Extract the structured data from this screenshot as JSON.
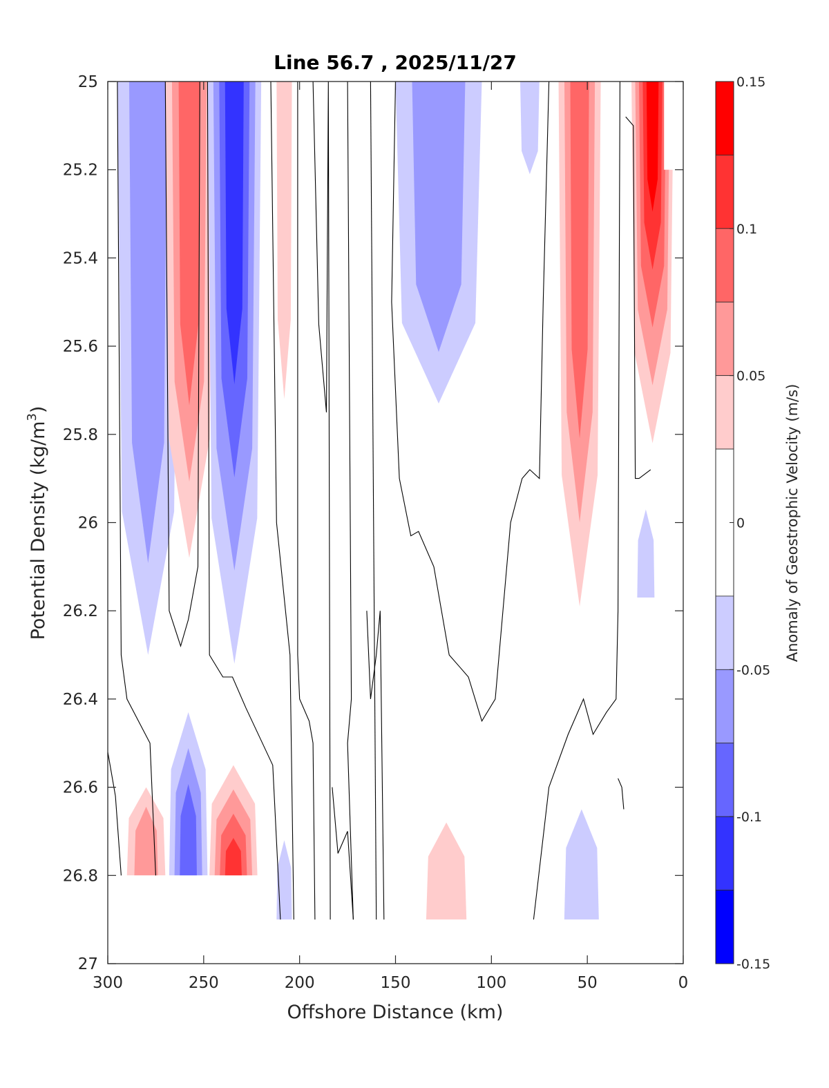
{
  "chart_data": {
    "type": "contour",
    "title": "Line 56.7 , 2025/11/27",
    "xlabel": "Offshore Distance (km)",
    "ylabel": "Potential Density (kg/m",
    "ylabel_superscript": "3",
    "ylabel_suffix": ")",
    "xlim": [
      300,
      0
    ],
    "ylim": [
      25,
      27
    ],
    "x_reversed": true,
    "y_reversed": true,
    "xticks": [
      300,
      250,
      200,
      150,
      100,
      50,
      0
    ],
    "xtick_labels": [
      "300",
      "250",
      "200",
      "150",
      "100",
      "50",
      "0"
    ],
    "yticks": [
      25,
      25.2,
      25.4,
      25.6,
      25.8,
      26,
      26.2,
      26.4,
      26.6,
      26.8,
      27
    ],
    "ytick_labels": [
      "25",
      "25.2",
      "25.4",
      "25.6",
      "25.8",
      "26",
      "26.2",
      "26.4",
      "26.6",
      "26.8",
      "27"
    ],
    "grid": false,
    "colorbar": {
      "label": "Anomaly of Geostrophic Velocity (m/s)",
      "range": [
        -0.15,
        0.15
      ],
      "ticks": [
        0.15,
        0.1,
        0.05,
        0,
        -0.05,
        -0.1,
        -0.15
      ],
      "tick_labels": [
        "0.15",
        "0.1",
        "0.05",
        "0",
        "-0.05",
        "-0.1",
        "-0.15"
      ],
      "levels": [
        -0.15,
        -0.125,
        -0.1,
        -0.075,
        -0.05,
        -0.025,
        0.025,
        0.05,
        0.075,
        0.1,
        0.125,
        0.15
      ],
      "bins": [
        {
          "from": 0.125,
          "to": 0.15,
          "color": "#ff0000"
        },
        {
          "from": 0.1,
          "to": 0.125,
          "color": "#ff3333"
        },
        {
          "from": 0.075,
          "to": 0.1,
          "color": "#ff6666"
        },
        {
          "from": 0.05,
          "to": 0.075,
          "color": "#ff9999"
        },
        {
          "from": 0.025,
          "to": 0.05,
          "color": "#ffcccc"
        },
        {
          "from": -0.025,
          "to": 0.025,
          "color": "#ffffff"
        },
        {
          "from": -0.05,
          "to": -0.025,
          "color": "#ccccff"
        },
        {
          "from": -0.075,
          "to": -0.05,
          "color": "#9999ff"
        },
        {
          "from": -0.1,
          "to": -0.075,
          "color": "#6666ff"
        },
        {
          "from": -0.125,
          "to": -0.1,
          "color": "#3333ff"
        },
        {
          "from": -0.15,
          "to": -0.125,
          "color": "#0000ff"
        }
      ]
    },
    "zero_contour_color": "#000000",
    "regions": [
      {
        "name": "offshore-blue-band-290km",
        "sign": "negative",
        "x_range": [
          295,
          263
        ],
        "sigma_range": [
          25.0,
          26.3
        ],
        "max_level": -0.075
      },
      {
        "name": "red-band-258km",
        "sign": "positive",
        "x_range": [
          270,
          245
        ],
        "sigma_range": [
          25.0,
          26.08
        ],
        "max_level": 0.1
      },
      {
        "name": "strong-blue-band-235km",
        "sign": "negative",
        "x_range": [
          248,
          220
        ],
        "sigma_range": [
          25.0,
          26.32
        ],
        "max_level": -0.125
      },
      {
        "name": "weak-red-band-205km",
        "sign": "positive",
        "x_range": [
          212,
          204
        ],
        "sigma_range": [
          25.0,
          25.72
        ],
        "max_level": 0.05
      },
      {
        "name": "blue-region-125km",
        "sign": "negative",
        "x_range": [
          150,
          105
        ],
        "sigma_range": [
          25.0,
          25.73
        ],
        "max_level": -0.075
      },
      {
        "name": "weak-blue-80km",
        "sign": "negative",
        "x_range": [
          85,
          75
        ],
        "sigma_range": [
          25.0,
          25.21
        ],
        "max_level": -0.05
      },
      {
        "name": "red-band-55km",
        "sign": "positive",
        "x_range": [
          65,
          43
        ],
        "sigma_range": [
          25.0,
          26.19
        ],
        "max_level": 0.1
      },
      {
        "name": "nearshore-red-15km",
        "sign": "positive",
        "x_range": [
          27,
          5
        ],
        "sigma_range": [
          25.0,
          25.82
        ],
        "max_level": 0.15
      },
      {
        "name": "weak-blue-20km",
        "sign": "negative",
        "x_range": [
          24,
          15
        ],
        "sigma_range": [
          25.97,
          26.17
        ],
        "max_level": -0.05
      },
      {
        "name": "deep-red-280km",
        "sign": "positive",
        "x_range": [
          290,
          270
        ],
        "sigma_range": [
          26.6,
          26.8
        ],
        "max_level": 0.075
      },
      {
        "name": "deep-blue-258km",
        "sign": "negative",
        "x_range": [
          268,
          248
        ],
        "sigma_range": [
          26.43,
          26.8
        ],
        "max_level": -0.1
      },
      {
        "name": "deep-red-233km",
        "sign": "positive",
        "x_range": [
          247,
          222
        ],
        "sigma_range": [
          26.55,
          26.8
        ],
        "max_level": 0.125
      },
      {
        "name": "deep-blue-205km",
        "sign": "negative",
        "x_range": [
          212,
          204
        ],
        "sigma_range": [
          26.72,
          26.9
        ],
        "max_level": -0.05
      },
      {
        "name": "deep-red-125km",
        "sign": "positive",
        "x_range": [
          134,
          113
        ],
        "sigma_range": [
          26.68,
          26.9
        ],
        "max_level": 0.05
      },
      {
        "name": "deep-blue-50km",
        "sign": "negative",
        "x_range": [
          62,
          44
        ],
        "sigma_range": [
          26.65,
          26.9
        ],
        "max_level": -0.05
      }
    ]
  }
}
